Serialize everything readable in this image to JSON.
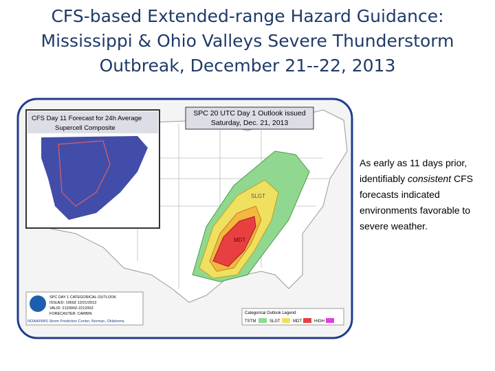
{
  "slide": {
    "title": {
      "lines": [
        "CFS-based Extended-range Hazard Guidance:",
        "Mississippi & Ohio Valleys Severe Thunderstorm",
        "Outbreak, December 21--22, 2013"
      ]
    },
    "map": {
      "inset_title": [
        "CFS Day 11 Forecast for 24h Average",
        "Supercell Composite"
      ],
      "outlook_title": [
        "SPC 20 UTC Day 1 Outlook issued",
        "Saturday, Dec. 21, 2013"
      ],
      "area_labels": [
        "SLGT",
        "MDT"
      ],
      "info_box": [
        "SPC DAY 1 CATEGORICAL OUTLOOK",
        "ISSUED: 1959Z 12/21/2013",
        "VALID: 212000Z-221200Z",
        "FORECASTER: CARBIN",
        "NOAA/NWS Storm Prediction Center, Norman, Oklahoma"
      ],
      "legend": {
        "title": "Categorical Outlook Legend",
        "items": [
          "TSTM",
          "SLGT",
          "MDT",
          "HIGH"
        ]
      }
    },
    "side_text": {
      "before": "As early as 11 days prior, identifiably ",
      "emphasis": "consistent",
      "after": " CFS forecasts indicated environments favorable to severe weather."
    }
  }
}
